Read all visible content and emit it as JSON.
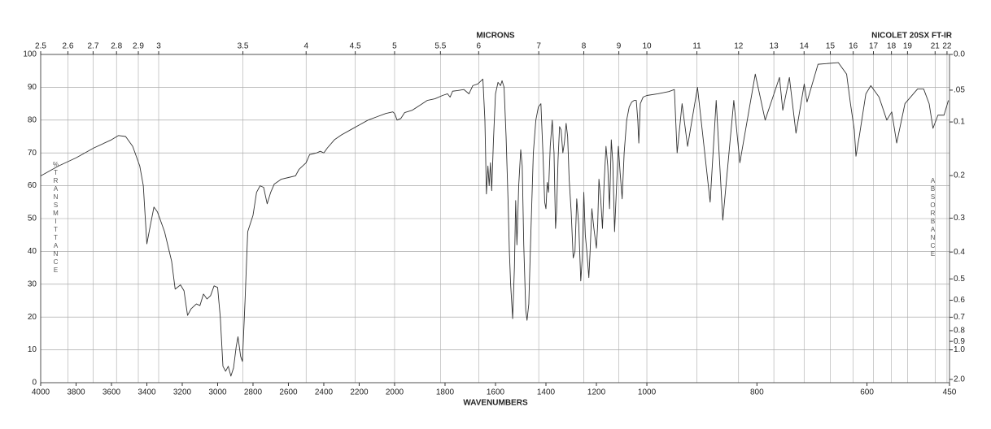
{
  "chart_data": {
    "type": "line",
    "top_axis_title": "MICRONS",
    "instrument": "NICOLET 20SX FT-IR",
    "x_label": "WAVENUMBERS",
    "y_label": "%TRANSMITTANCE",
    "y2_label": "ABSORBANCE",
    "color": "#333333",
    "grid": true,
    "xlim": [
      4000,
      450
    ],
    "x_scale_changes": [
      2000,
      1000
    ],
    "xticks": [
      4000,
      3800,
      3600,
      3400,
      3200,
      3000,
      2800,
      2600,
      2400,
      2200,
      2000,
      1800,
      1600,
      1400,
      1200,
      1000,
      800,
      600,
      450
    ],
    "micron_ticks": [
      2.5,
      2.6,
      2.7,
      2.8,
      2.9,
      3,
      3.5,
      4,
      4.5,
      5,
      5.5,
      6,
      7,
      8,
      9,
      10,
      11,
      12,
      13,
      14,
      15,
      16,
      17,
      18,
      19,
      21,
      22
    ],
    "ylim": [
      0,
      100
    ],
    "yticks": [
      0,
      10,
      20,
      30,
      40,
      50,
      60,
      70,
      80,
      90,
      100
    ],
    "absorbance_ticks": [
      {
        "value": 0,
        "label": "0.0"
      },
      {
        "value": 0.05,
        "label": ".05"
      },
      0.1,
      0.2,
      0.3,
      0.4,
      0.5,
      0.6,
      0.7,
      0.8,
      0.9,
      {
        "value": 1,
        "label": "1.0"
      },
      {
        "value": 2,
        "label": "2.0"
      }
    ],
    "x": [
      4000,
      3900,
      3800,
      3700,
      3600,
      3560,
      3520,
      3480,
      3440,
      3420,
      3400,
      3380,
      3360,
      3340,
      3300,
      3260,
      3240,
      3210,
      3190,
      3170,
      3150,
      3120,
      3100,
      3080,
      3060,
      3040,
      3020,
      3000,
      2985,
      2970,
      2955,
      2940,
      2925,
      2910,
      2895,
      2885,
      2870,
      2860,
      2845,
      2830,
      2800,
      2780,
      2760,
      2740,
      2720,
      2700,
      2680,
      2640,
      2600,
      2560,
      2540,
      2500,
      2480,
      2440,
      2420,
      2400,
      2380,
      2340,
      2300,
      2250,
      2200,
      2150,
      2100,
      2050,
      2010,
      2000,
      1990,
      1975,
      1960,
      1930,
      1900,
      1870,
      1840,
      1810,
      1790,
      1780,
      1770,
      1750,
      1725,
      1705,
      1690,
      1670,
      1650,
      1642,
      1636,
      1630,
      1625,
      1620,
      1615,
      1608,
      1600,
      1590,
      1580,
      1574,
      1566,
      1558,
      1550,
      1545,
      1540,
      1532,
      1525,
      1520,
      1515,
      1508,
      1500,
      1494,
      1488,
      1480,
      1475,
      1468,
      1460,
      1450,
      1440,
      1430,
      1420,
      1412,
      1405,
      1400,
      1395,
      1390,
      1383,
      1375,
      1368,
      1362,
      1358,
      1352,
      1346,
      1340,
      1333,
      1327,
      1320,
      1314,
      1308,
      1300,
      1292,
      1285,
      1278,
      1270,
      1262,
      1256,
      1250,
      1244,
      1238,
      1230,
      1225,
      1218,
      1210,
      1200,
      1195,
      1190,
      1183,
      1176,
      1170,
      1162,
      1155,
      1148,
      1141,
      1135,
      1128,
      1120,
      1113,
      1106,
      1098,
      1090,
      1080,
      1070,
      1060,
      1050,
      1042,
      1036,
      1032,
      1026,
      1015,
      1000,
      980,
      960,
      950,
      945,
      936,
      926,
      908,
      885,
      874,
      862,
      842,
      831,
      803,
      785,
      759,
      753,
      741,
      729,
      714,
      709,
      689,
      652,
      637,
      630,
      623,
      620,
      614,
      602,
      593,
      578,
      564,
      555,
      546,
      531,
      508,
      497,
      487,
      480,
      471,
      460,
      452
    ],
    "values": [
      63,
      66,
      68.5,
      71.5,
      74,
      75.3,
      75,
      72,
      66,
      60,
      42.3,
      48,
      53.5,
      52,
      46,
      37,
      28.5,
      29.8,
      28,
      20.5,
      22.5,
      24,
      23.5,
      27,
      25.5,
      26.5,
      29.5,
      29,
      20,
      5,
      3.5,
      5,
      2,
      4.5,
      11,
      14,
      8,
      6.5,
      25,
      46,
      51,
      58,
      60,
      59.5,
      54.5,
      58,
      60.5,
      62,
      62.5,
      63,
      65,
      67,
      69.5,
      70,
      70.5,
      70,
      71.5,
      74,
      75.5,
      77,
      78.5,
      80,
      81,
      82,
      82.5,
      82,
      80,
      80.5,
      82.3,
      83,
      84.5,
      86,
      86.5,
      87.5,
      88,
      87,
      88.8,
      89,
      89.3,
      88,
      90.5,
      91,
      92.5,
      80,
      57.5,
      66,
      60,
      67,
      58.5,
      74,
      88,
      91.5,
      90.5,
      92,
      90,
      75,
      55,
      40,
      30,
      19.5,
      35,
      55.5,
      42,
      60,
      71,
      66,
      42,
      22,
      19,
      24,
      45,
      70,
      80,
      84,
      85,
      70,
      55,
      53,
      61,
      58,
      72,
      80,
      70,
      47,
      52,
      68,
      78,
      77,
      70,
      73,
      79,
      75,
      62,
      52,
      38,
      40,
      56,
      48,
      31,
      38,
      58,
      45,
      40,
      32,
      40,
      53,
      47,
      41,
      48,
      62,
      56,
      47,
      60,
      72,
      66,
      53,
      74,
      67,
      46,
      60,
      72,
      64,
      56,
      70,
      80,
      84,
      85.5,
      86,
      86,
      80,
      73,
      85,
      87,
      87.5,
      88,
      88.7,
      89.3,
      70,
      85,
      72,
      90,
      55,
      86,
      49.5,
      86,
      67,
      94,
      80,
      93,
      83,
      93,
      76,
      91,
      85.5,
      97,
      97.5,
      94,
      85,
      77,
      69,
      75,
      88,
      90.5,
      87,
      80,
      82.5,
      73,
      85,
      89.5,
      89.5,
      85,
      77.5,
      81.5,
      81.5,
      86
    ]
  }
}
